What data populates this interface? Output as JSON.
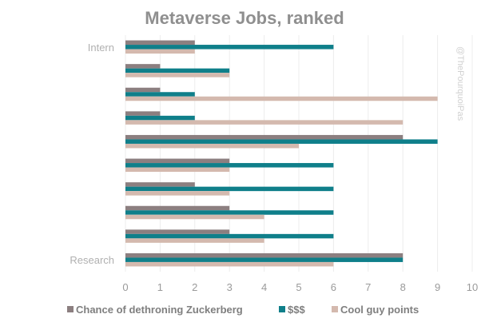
{
  "chart_data": {
    "type": "bar",
    "orientation": "horizontal",
    "title": "Metaverse Jobs, ranked",
    "categories": [
      "Research",
      "",
      "",
      "",
      "",
      "",
      "",
      "",
      "",
      "Intern"
    ],
    "series": [
      {
        "name": "Chance of dethroning Zuckerberg",
        "color": "#8c7f80",
        "values": [
          8,
          3,
          3,
          2,
          3,
          8,
          1,
          1,
          1,
          2
        ]
      },
      {
        "name": "$$$",
        "color": "#0f7f8a",
        "values": [
          8,
          6,
          6,
          6,
          6,
          9,
          2,
          2,
          3,
          6
        ]
      },
      {
        "name": "Cool guy points",
        "color": "#d4b9ae",
        "values": [
          6,
          4,
          4,
          3,
          3,
          5,
          8,
          9,
          3,
          2
        ]
      }
    ],
    "xlim": [
      0,
      10
    ],
    "x_ticks": [
      "0",
      "1",
      "2",
      "3",
      "4",
      "5",
      "6",
      "7",
      "8",
      "9",
      "10"
    ],
    "grid": true,
    "legend_position": "bottom"
  },
  "watermark": "@ThePourquoiPas"
}
